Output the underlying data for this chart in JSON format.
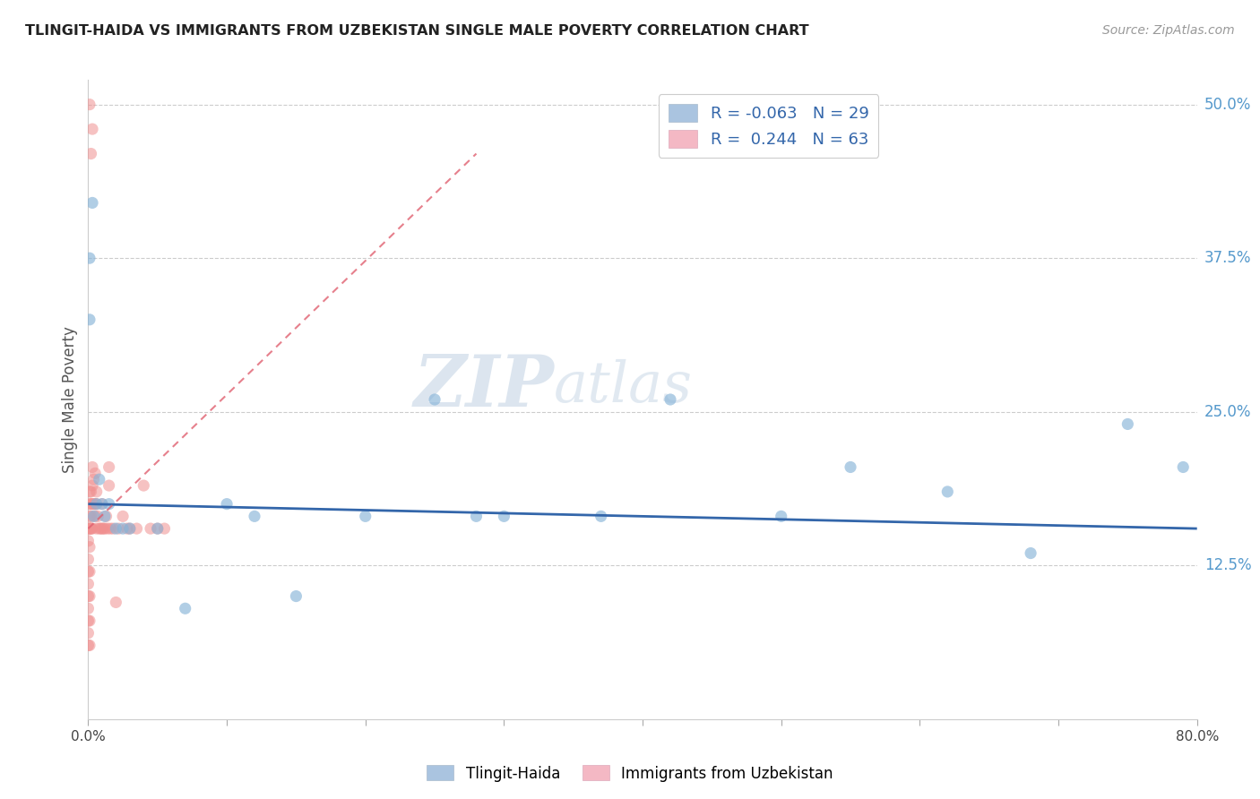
{
  "title": "TLINGIT-HAIDA VS IMMIGRANTS FROM UZBEKISTAN SINGLE MALE POVERTY CORRELATION CHART",
  "source": "Source: ZipAtlas.com",
  "ylabel": "Single Male Poverty",
  "xlabel": "",
  "xlim": [
    0.0,
    0.8
  ],
  "ylim": [
    0.0,
    0.52
  ],
  "yticks_right": [
    0.125,
    0.25,
    0.375,
    0.5
  ],
  "ytick_labels_right": [
    "12.5%",
    "25.0%",
    "37.5%",
    "50.0%"
  ],
  "legend1_color": "#aac4e0",
  "legend2_color": "#f4b8c4",
  "legend1_label": "Tlingit-Haida",
  "legend2_label": "Immigrants from Uzbekistan",
  "series1_R": "-0.063",
  "series1_N": "29",
  "series2_R": "0.244",
  "series2_N": "63",
  "watermark_zip": "ZIP",
  "watermark_atlas": "atlas",
  "watermark_color": "#d0dde8",
  "blue_color": "#88b4d8",
  "pink_color": "#f09090",
  "trendline1_color": "#3366aa",
  "trendline2_color": "#e06070",
  "grid_color": "#cccccc",
  "title_color": "#222222",
  "right_axis_color": "#5599cc",
  "series1_x": [
    0.001,
    0.001,
    0.003,
    0.004,
    0.006,
    0.008,
    0.01,
    0.012,
    0.015,
    0.02,
    0.025,
    0.03,
    0.05,
    0.07,
    0.1,
    0.12,
    0.15,
    0.2,
    0.25,
    0.28,
    0.3,
    0.37,
    0.42,
    0.5,
    0.55,
    0.62,
    0.68,
    0.75,
    0.79
  ],
  "series1_y": [
    0.375,
    0.325,
    0.42,
    0.165,
    0.175,
    0.195,
    0.175,
    0.165,
    0.175,
    0.155,
    0.155,
    0.155,
    0.155,
    0.09,
    0.175,
    0.165,
    0.1,
    0.165,
    0.26,
    0.165,
    0.165,
    0.165,
    0.26,
    0.165,
    0.205,
    0.185,
    0.135,
    0.24,
    0.205
  ],
  "series2_x": [
    0.0,
    0.0,
    0.0,
    0.0,
    0.0,
    0.0,
    0.0,
    0.0,
    0.0,
    0.0,
    0.001,
    0.001,
    0.001,
    0.001,
    0.001,
    0.001,
    0.001,
    0.001,
    0.001,
    0.001,
    0.002,
    0.002,
    0.002,
    0.002,
    0.002,
    0.003,
    0.003,
    0.003,
    0.003,
    0.004,
    0.004,
    0.005,
    0.005,
    0.005,
    0.006,
    0.006,
    0.006,
    0.007,
    0.008,
    0.009,
    0.01,
    0.01,
    0.011,
    0.012,
    0.013,
    0.014,
    0.015,
    0.015,
    0.016,
    0.018,
    0.02,
    0.022,
    0.025,
    0.028,
    0.03,
    0.035,
    0.04,
    0.045,
    0.05,
    0.055,
    0.002,
    0.003,
    0.001
  ],
  "series2_y": [
    0.06,
    0.07,
    0.08,
    0.09,
    0.1,
    0.11,
    0.12,
    0.13,
    0.145,
    0.155,
    0.06,
    0.08,
    0.1,
    0.12,
    0.14,
    0.155,
    0.155,
    0.165,
    0.175,
    0.185,
    0.155,
    0.155,
    0.165,
    0.175,
    0.185,
    0.155,
    0.175,
    0.19,
    0.205,
    0.175,
    0.195,
    0.165,
    0.175,
    0.2,
    0.155,
    0.175,
    0.185,
    0.165,
    0.155,
    0.155,
    0.155,
    0.175,
    0.155,
    0.155,
    0.165,
    0.155,
    0.19,
    0.205,
    0.155,
    0.155,
    0.095,
    0.155,
    0.165,
    0.155,
    0.155,
    0.155,
    0.19,
    0.155,
    0.155,
    0.155,
    0.46,
    0.48,
    0.5
  ],
  "trendline2_x_start": 0.0,
  "trendline2_x_end": 0.28,
  "trendline2_y_start": 0.155,
  "trendline2_y_end": 0.46,
  "trendline1_x_start": 0.0,
  "trendline1_x_end": 0.8,
  "trendline1_y_start": 0.175,
  "trendline1_y_end": 0.155
}
